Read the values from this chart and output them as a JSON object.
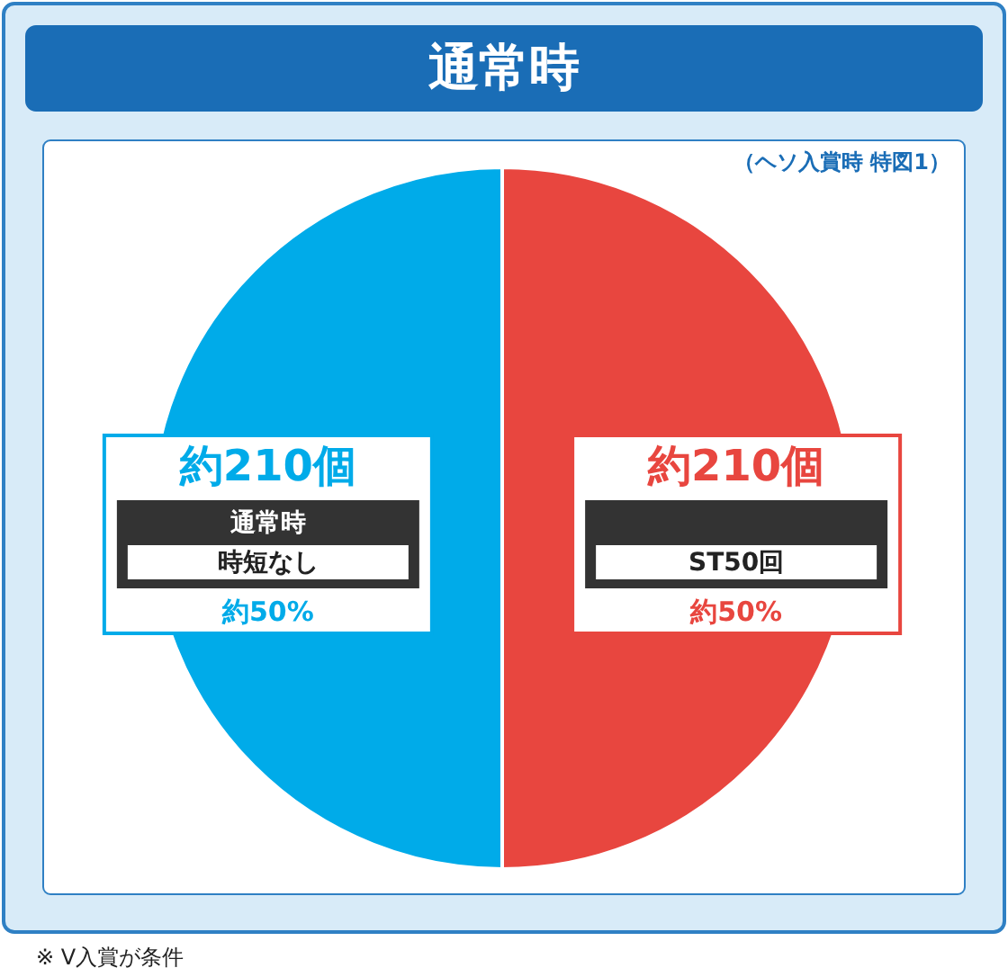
{
  "chart_data": {
    "type": "pie",
    "title": "通常時",
    "subtitle": "（ヘソ入賞時 特図1）",
    "categories": [
      "ST50回",
      "時短なし"
    ],
    "values": [
      50,
      50
    ],
    "colors": [
      "#e8463f",
      "#00abe9"
    ],
    "value_labels": [
      "約50%",
      "約50%"
    ],
    "annotations": [
      {
        "text": "約210個",
        "x": "ST50回"
      },
      {
        "text": "約210個",
        "x": "時短なし"
      },
      {
        "text": "通常時",
        "x": "時短なし"
      },
      "※ V入賞が条件"
    ]
  }
}
